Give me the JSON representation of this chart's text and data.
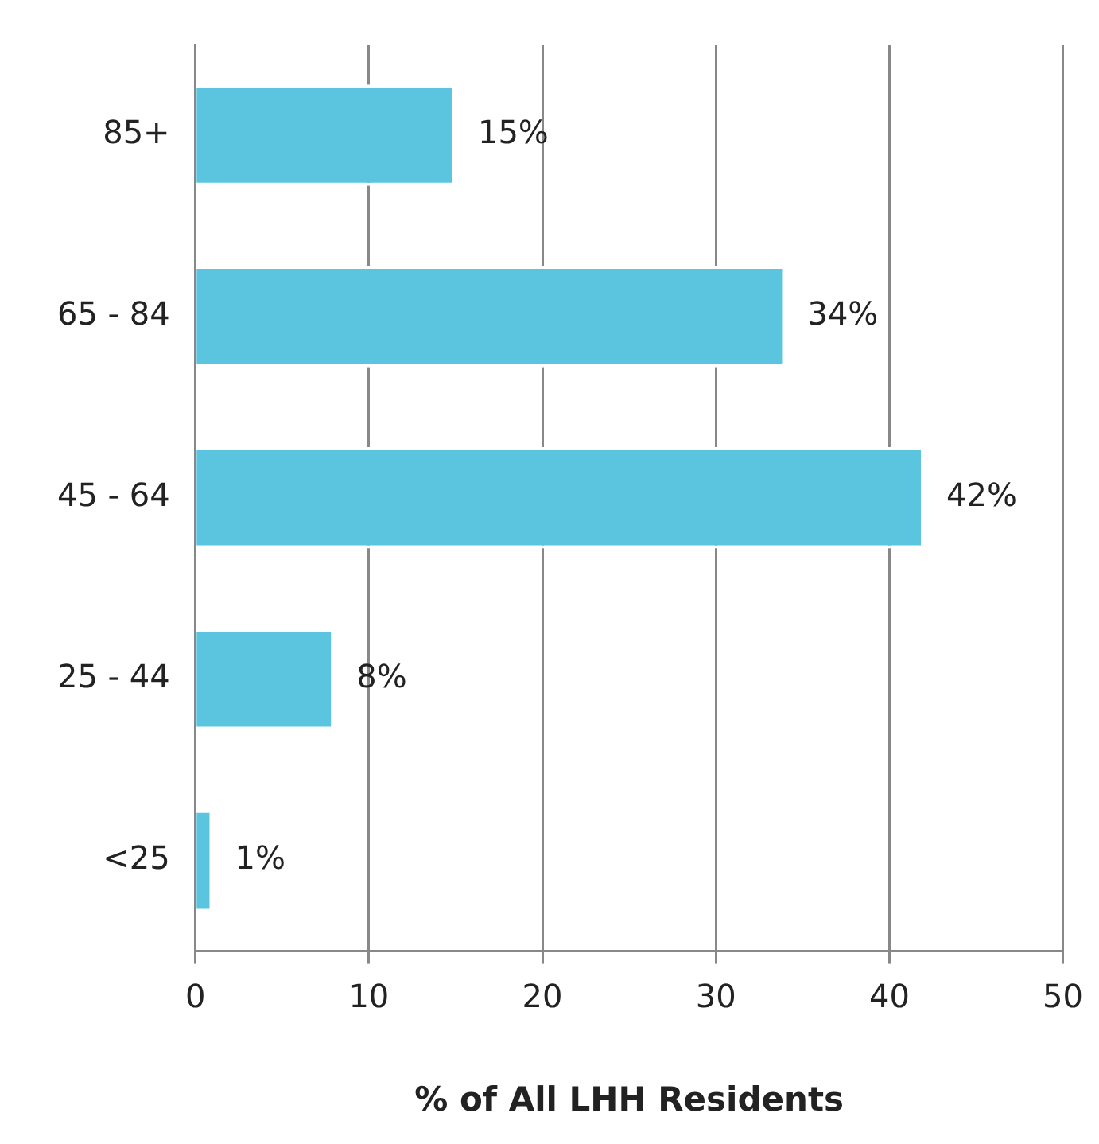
{
  "chart_data": {
    "type": "bar",
    "orientation": "horizontal",
    "categories": [
      "85+",
      "65 - 84",
      "45 - 64",
      "25 - 44",
      "<25"
    ],
    "values": [
      15,
      34,
      42,
      8,
      1
    ],
    "value_labels": [
      "15%",
      "34%",
      "42%",
      "8%",
      "1%"
    ],
    "color": "#5bc4de",
    "xlabel": "% of All LHH Residents",
    "xlim": [
      0,
      50
    ],
    "xticks": [
      0,
      10,
      20,
      30,
      40,
      50
    ],
    "grid": "x",
    "legend": false
  }
}
